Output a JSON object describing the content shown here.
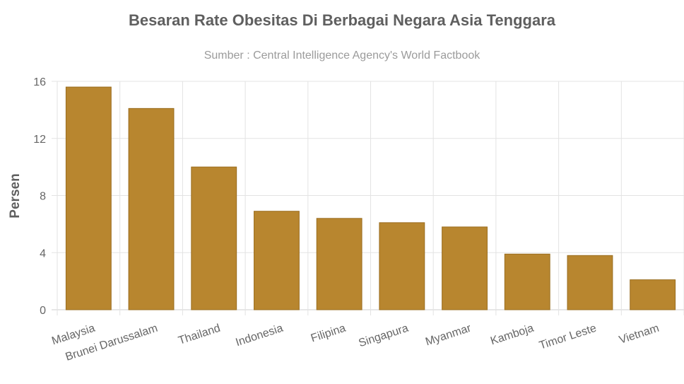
{
  "chart_data": {
    "type": "bar",
    "title": "Besaran Rate Obesitas Di Berbagai Negara Asia Tenggara",
    "subtitle": "Sumber : Central Intelligence Agency's World Factbook",
    "xlabel": "",
    "ylabel": "Persen",
    "categories": [
      "Malaysia",
      "Brunei Darussalam",
      "Thailand",
      "Indonesia",
      "Filipina",
      "Singapura",
      "Myanmar",
      "Kamboja",
      "Timor Leste",
      "Vietnam"
    ],
    "values": [
      15.6,
      14.1,
      10.0,
      6.9,
      6.4,
      6.1,
      5.8,
      3.9,
      3.8,
      2.1
    ],
    "ylim": [
      0,
      16
    ],
    "yticks": [
      0,
      4,
      8,
      12,
      16
    ],
    "grid": true,
    "legend": "none",
    "colors": {
      "bar_fill": "#b8862f",
      "bar_border": "#9a6d1f",
      "grid": "#e3e3e3",
      "axis": "#cfcfcf"
    }
  }
}
